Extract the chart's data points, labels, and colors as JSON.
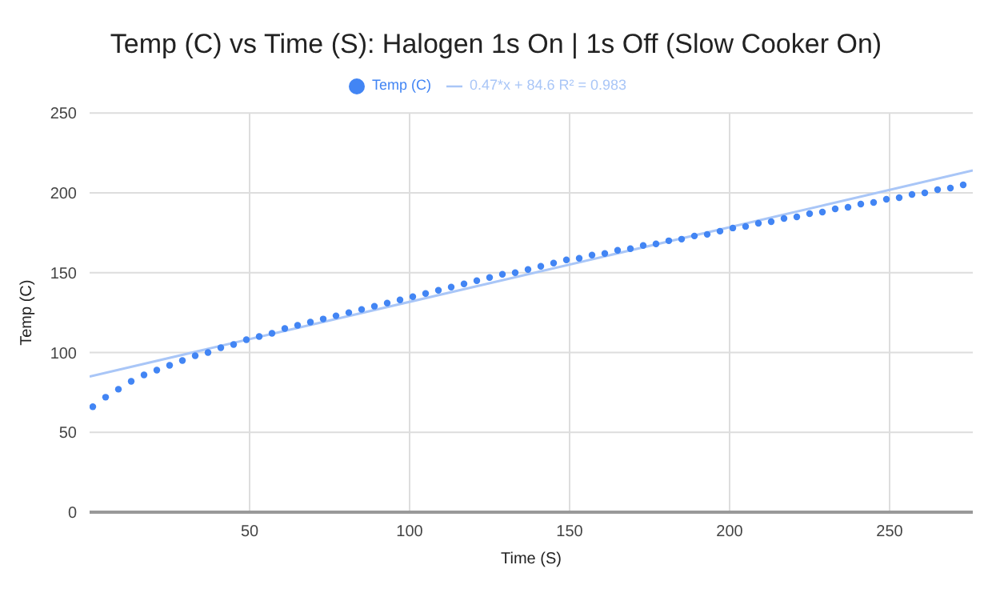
{
  "chart_data": {
    "type": "scatter",
    "title": "Temp (C) vs Time (S): Halogen 1s On | 1s Off (Slow Cooker On)",
    "xlabel": "Time (S)",
    "ylabel": "Temp (C)",
    "xlim": [
      0,
      276
    ],
    "xticks": [
      50,
      100,
      150,
      200,
      250
    ],
    "ylim": [
      0,
      250
    ],
    "yticks": [
      0,
      50,
      100,
      150,
      200,
      250
    ],
    "grid": true,
    "legend": "top",
    "x": [
      1,
      5,
      9,
      13,
      17,
      21,
      25,
      29,
      33,
      37,
      41,
      45,
      49,
      53,
      57,
      61,
      65,
      69,
      73,
      77,
      81,
      85,
      89,
      93,
      97,
      101,
      105,
      109,
      113,
      117,
      121,
      125,
      129,
      133,
      137,
      141,
      145,
      149,
      153,
      157,
      161,
      165,
      169,
      173,
      177,
      181,
      185,
      189,
      193,
      197,
      201,
      205,
      209,
      213,
      217,
      221,
      225,
      229,
      233,
      237,
      241,
      245,
      249,
      253,
      257,
      261,
      265,
      269,
      273
    ],
    "series": [
      {
        "name": "Temp (C)",
        "marker": "circle",
        "color": "#4285f4",
        "values": [
          66,
          72,
          77,
          82,
          86,
          89,
          92,
          95,
          98,
          100,
          103,
          105,
          108,
          110,
          112,
          115,
          117,
          119,
          121,
          123,
          125,
          127,
          129,
          131,
          133,
          135,
          137,
          139,
          141,
          143,
          145,
          147,
          149,
          150,
          152,
          154,
          156,
          158,
          159,
          161,
          162,
          164,
          165,
          167,
          168,
          170,
          171,
          173,
          174,
          176,
          178,
          179,
          181,
          182,
          184,
          185,
          187,
          188,
          190,
          191,
          193,
          194,
          196,
          197,
          199,
          200,
          202,
          203,
          205
        ]
      },
      {
        "name": "0.47*x + 84.6 R² = 0.983",
        "type": "line",
        "color": "#a9c6f7",
        "x": [
          0,
          276
        ],
        "values": [
          85,
          214
        ]
      }
    ]
  }
}
